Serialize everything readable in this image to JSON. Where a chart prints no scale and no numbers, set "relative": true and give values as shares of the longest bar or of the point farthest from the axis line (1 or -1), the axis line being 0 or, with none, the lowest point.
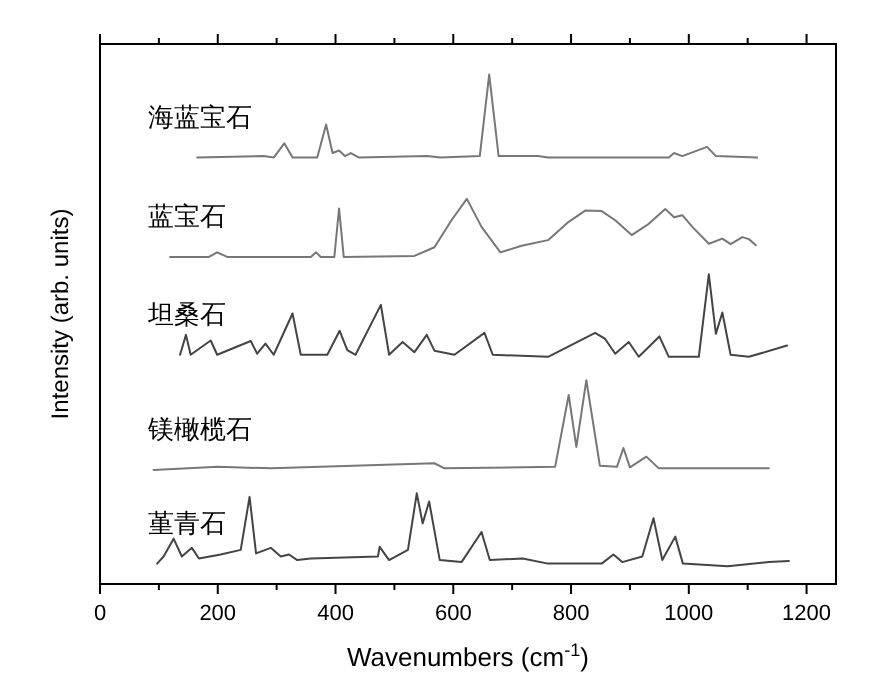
{
  "chart_data": {
    "type": "line",
    "relative": true,
    "xlabel": "Wavenumbers (cm$^{-1}$)",
    "ylabel": "Intensity (arb. units)",
    "xlim": [
      0,
      1250
    ],
    "xticks": [
      0,
      {
        "value": 100,
        "label": null
      },
      200,
      {
        "value": 300,
        "label": null
      },
      400,
      {
        "value": 500,
        "label": null
      },
      600,
      {
        "value": 700,
        "label": null
      },
      800,
      {
        "value": 900,
        "label": null
      },
      1000,
      {
        "value": 1100,
        "label": null
      },
      1200
    ],
    "series": [
      {
        "name": "海蓝宝石",
        "color": "#777777",
        "x": [
          165,
          278,
          295,
          313,
          327,
          369,
          384,
          395,
          406,
          416,
          426,
          440,
          556,
          578,
          645,
          661,
          677,
          744,
          761,
          966,
          975,
          989,
          1031,
          1046,
          1116
        ],
        "values": [
          0.837,
          0.84,
          0.837,
          0.865,
          0.837,
          0.837,
          0.902,
          0.846,
          0.851,
          0.84,
          0.846,
          0.837,
          0.84,
          0.837,
          0.84,
          1.0,
          0.84,
          0.84,
          0.837,
          0.837,
          0.846,
          0.84,
          0.858,
          0.84,
          0.837
        ]
      },
      {
        "name": "蓝宝石",
        "color": "#777777",
        "x": [
          119,
          185,
          199,
          216,
          358,
          367,
          375,
          398,
          406,
          414,
          534,
          568,
          597,
          623,
          648,
          680,
          716,
          761,
          796,
          824,
          852,
          875,
          903,
          932,
          960,
          975,
          989,
          1006,
          1034,
          1057,
          1071,
          1091,
          1102,
          1114
        ],
        "values": [
          0.642,
          0.642,
          0.651,
          0.642,
          0.642,
          0.651,
          0.642,
          0.642,
          0.737,
          0.642,
          0.644,
          0.661,
          0.714,
          0.756,
          0.701,
          0.651,
          0.664,
          0.675,
          0.711,
          0.733,
          0.732,
          0.714,
          0.685,
          0.707,
          0.736,
          0.72,
          0.724,
          0.701,
          0.668,
          0.678,
          0.667,
          0.681,
          0.677,
          0.665
        ]
      },
      {
        "name": "坦桑石",
        "color": "#444444",
        "x": [
          136,
          146,
          154,
          188,
          199,
          256,
          267,
          281,
          295,
          327,
          341,
          386,
          407,
          420,
          434,
          477,
          491,
          514,
          534,
          555,
          568,
          602,
          653,
          667,
          761,
          841,
          858,
          875,
          898,
          915,
          950,
          966,
          1017,
          1034,
          1046,
          1057,
          1071,
          1102,
          1167
        ],
        "values": [
          0.45,
          0.489,
          0.45,
          0.478,
          0.45,
          0.477,
          0.452,
          0.472,
          0.45,
          0.531,
          0.45,
          0.45,
          0.497,
          0.459,
          0.45,
          0.548,
          0.45,
          0.475,
          0.455,
          0.489,
          0.458,
          0.45,
          0.493,
          0.45,
          0.446,
          0.493,
          0.481,
          0.452,
          0.475,
          0.446,
          0.486,
          0.446,
          0.446,
          0.608,
          0.491,
          0.533,
          0.45,
          0.446,
          0.468
        ]
      },
      {
        "name": "镁橄榄石",
        "color": "#777777",
        "x": [
          91,
          200,
          291,
          568,
          585,
          773,
          796,
          809,
          826,
          849,
          878,
          889,
          900,
          928,
          949,
          1136
        ],
        "values": [
          0.224,
          0.23,
          0.227,
          0.237,
          0.227,
          0.23,
          0.371,
          0.269,
          0.4,
          0.232,
          0.23,
          0.267,
          0.229,
          0.25,
          0.227,
          0.227
        ]
      },
      {
        "name": "堇青石",
        "color": "#444444",
        "x": [
          97,
          108,
          125,
          139,
          156,
          168,
          205,
          239,
          254,
          265,
          290,
          307,
          321,
          335,
          358,
          472,
          475,
          491,
          523,
          538,
          548,
          559,
          577,
          614,
          648,
          662,
          718,
          761,
          852,
          872,
          887,
          921,
          940,
          955,
          977,
          990,
          1066,
          1136,
          1170
        ],
        "values": [
          0.04,
          0.054,
          0.089,
          0.054,
          0.071,
          0.05,
          0.058,
          0.067,
          0.171,
          0.06,
          0.071,
          0.054,
          0.058,
          0.047,
          0.05,
          0.054,
          0.073,
          0.047,
          0.067,
          0.178,
          0.119,
          0.162,
          0.047,
          0.043,
          0.102,
          0.047,
          0.05,
          0.04,
          0.04,
          0.058,
          0.043,
          0.054,
          0.129,
          0.047,
          0.093,
          0.04,
          0.035,
          0.043,
          0.045
        ]
      }
    ]
  }
}
